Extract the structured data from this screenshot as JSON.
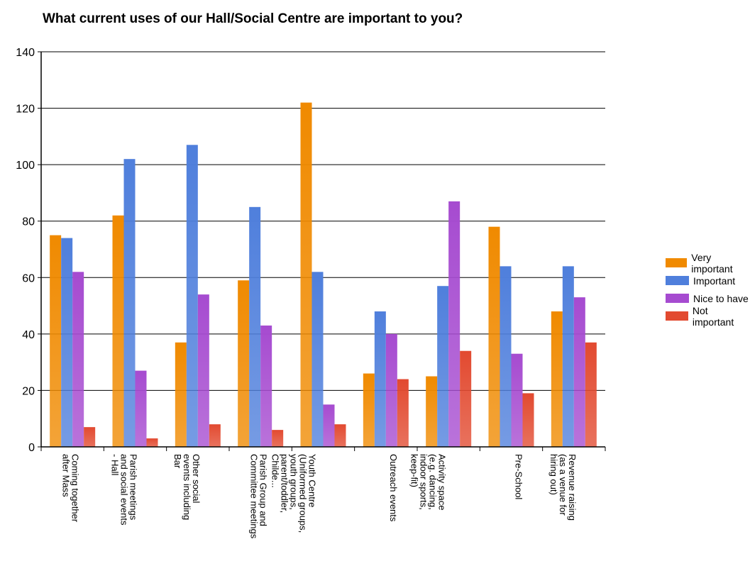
{
  "chart_data": {
    "type": "bar",
    "title": "What current uses of our Hall/Social Centre are important to you?",
    "categories": [
      "Coming together after Mass",
      "Parish meetings and social events - Hall",
      "Other social events including Bar",
      "Parish Group and Committee meetings",
      "Youth Centre (Uniformed groups, youth groups, parent/toddler, Childe...",
      "Outreach events",
      "Activity space (e.g. dancing, indoor sports, keep-fit)",
      "Pre-School",
      "Revenue raising (as a venue for hiring out)"
    ],
    "series": [
      {
        "name": "Very important",
        "color": "#f08a00",
        "values": [
          75,
          82,
          37,
          59,
          122,
          26,
          25,
          78,
          48
        ]
      },
      {
        "name": "Important",
        "color": "#4f7fdc",
        "values": [
          74,
          102,
          107,
          85,
          62,
          48,
          57,
          64,
          64
        ]
      },
      {
        "name": "Nice to have",
        "color": "#a64bd0",
        "values": [
          62,
          27,
          54,
          43,
          15,
          40,
          87,
          33,
          53
        ]
      },
      {
        "name": "Not important",
        "color": "#e24a30",
        "values": [
          7,
          3,
          8,
          6,
          8,
          24,
          34,
          19,
          37
        ]
      }
    ],
    "ylim": [
      0,
      140
    ],
    "yticks": [
      0,
      20,
      40,
      60,
      80,
      100,
      120,
      140
    ],
    "grid": true,
    "legend": "right"
  }
}
